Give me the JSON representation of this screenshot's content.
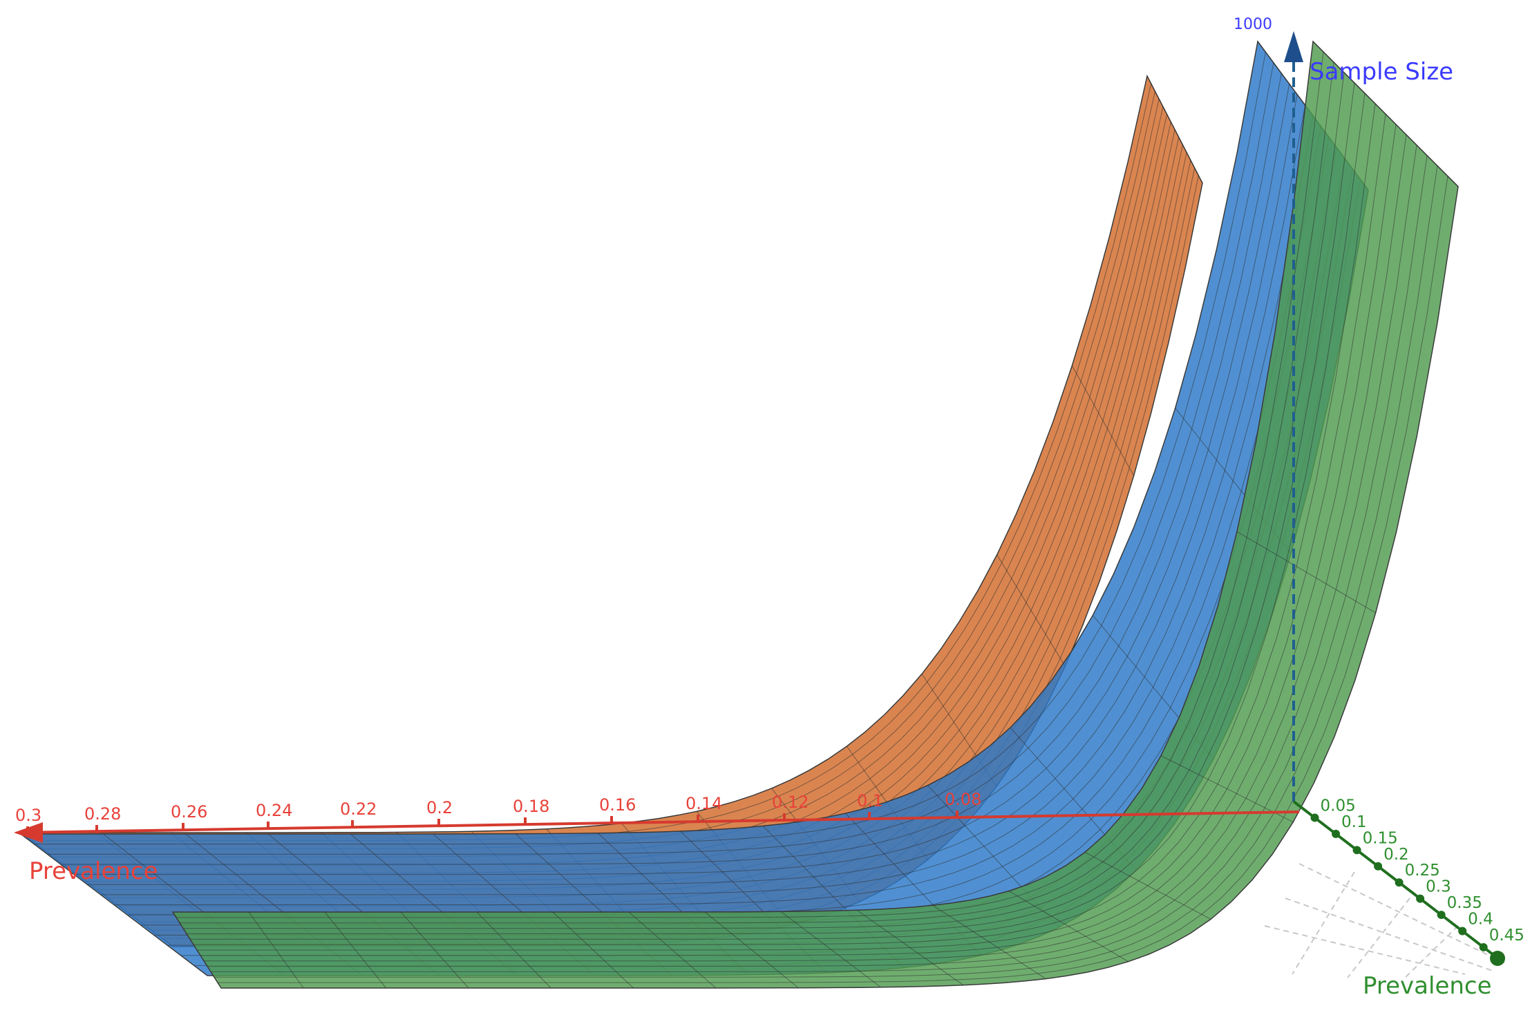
{
  "chart_data": {
    "type": "surface",
    "x_axis": {
      "label": "Prevalence",
      "ticks": [
        "0.3",
        "0.28",
        "0.26",
        "0.24",
        "0.22",
        "0.2",
        "0.18",
        "0.16",
        "0.14",
        "0.12",
        "0.1",
        "0.08"
      ]
    },
    "y_axis": {
      "label": "Prevalence",
      "ticks": [
        "0.05",
        "0.1",
        "0.15",
        "0.2",
        "0.25",
        "0.3",
        "0.35",
        "0.4",
        "0.45"
      ]
    },
    "z_axis": {
      "label": "Sample Size",
      "ticks": [
        "1000"
      ],
      "range": [
        0,
        1000
      ]
    },
    "series": [
      {
        "color": "#d26a2a"
      },
      {
        "color": "#2a78c8"
      },
      {
        "color": "#4f9b4f"
      }
    ],
    "grid": true
  }
}
